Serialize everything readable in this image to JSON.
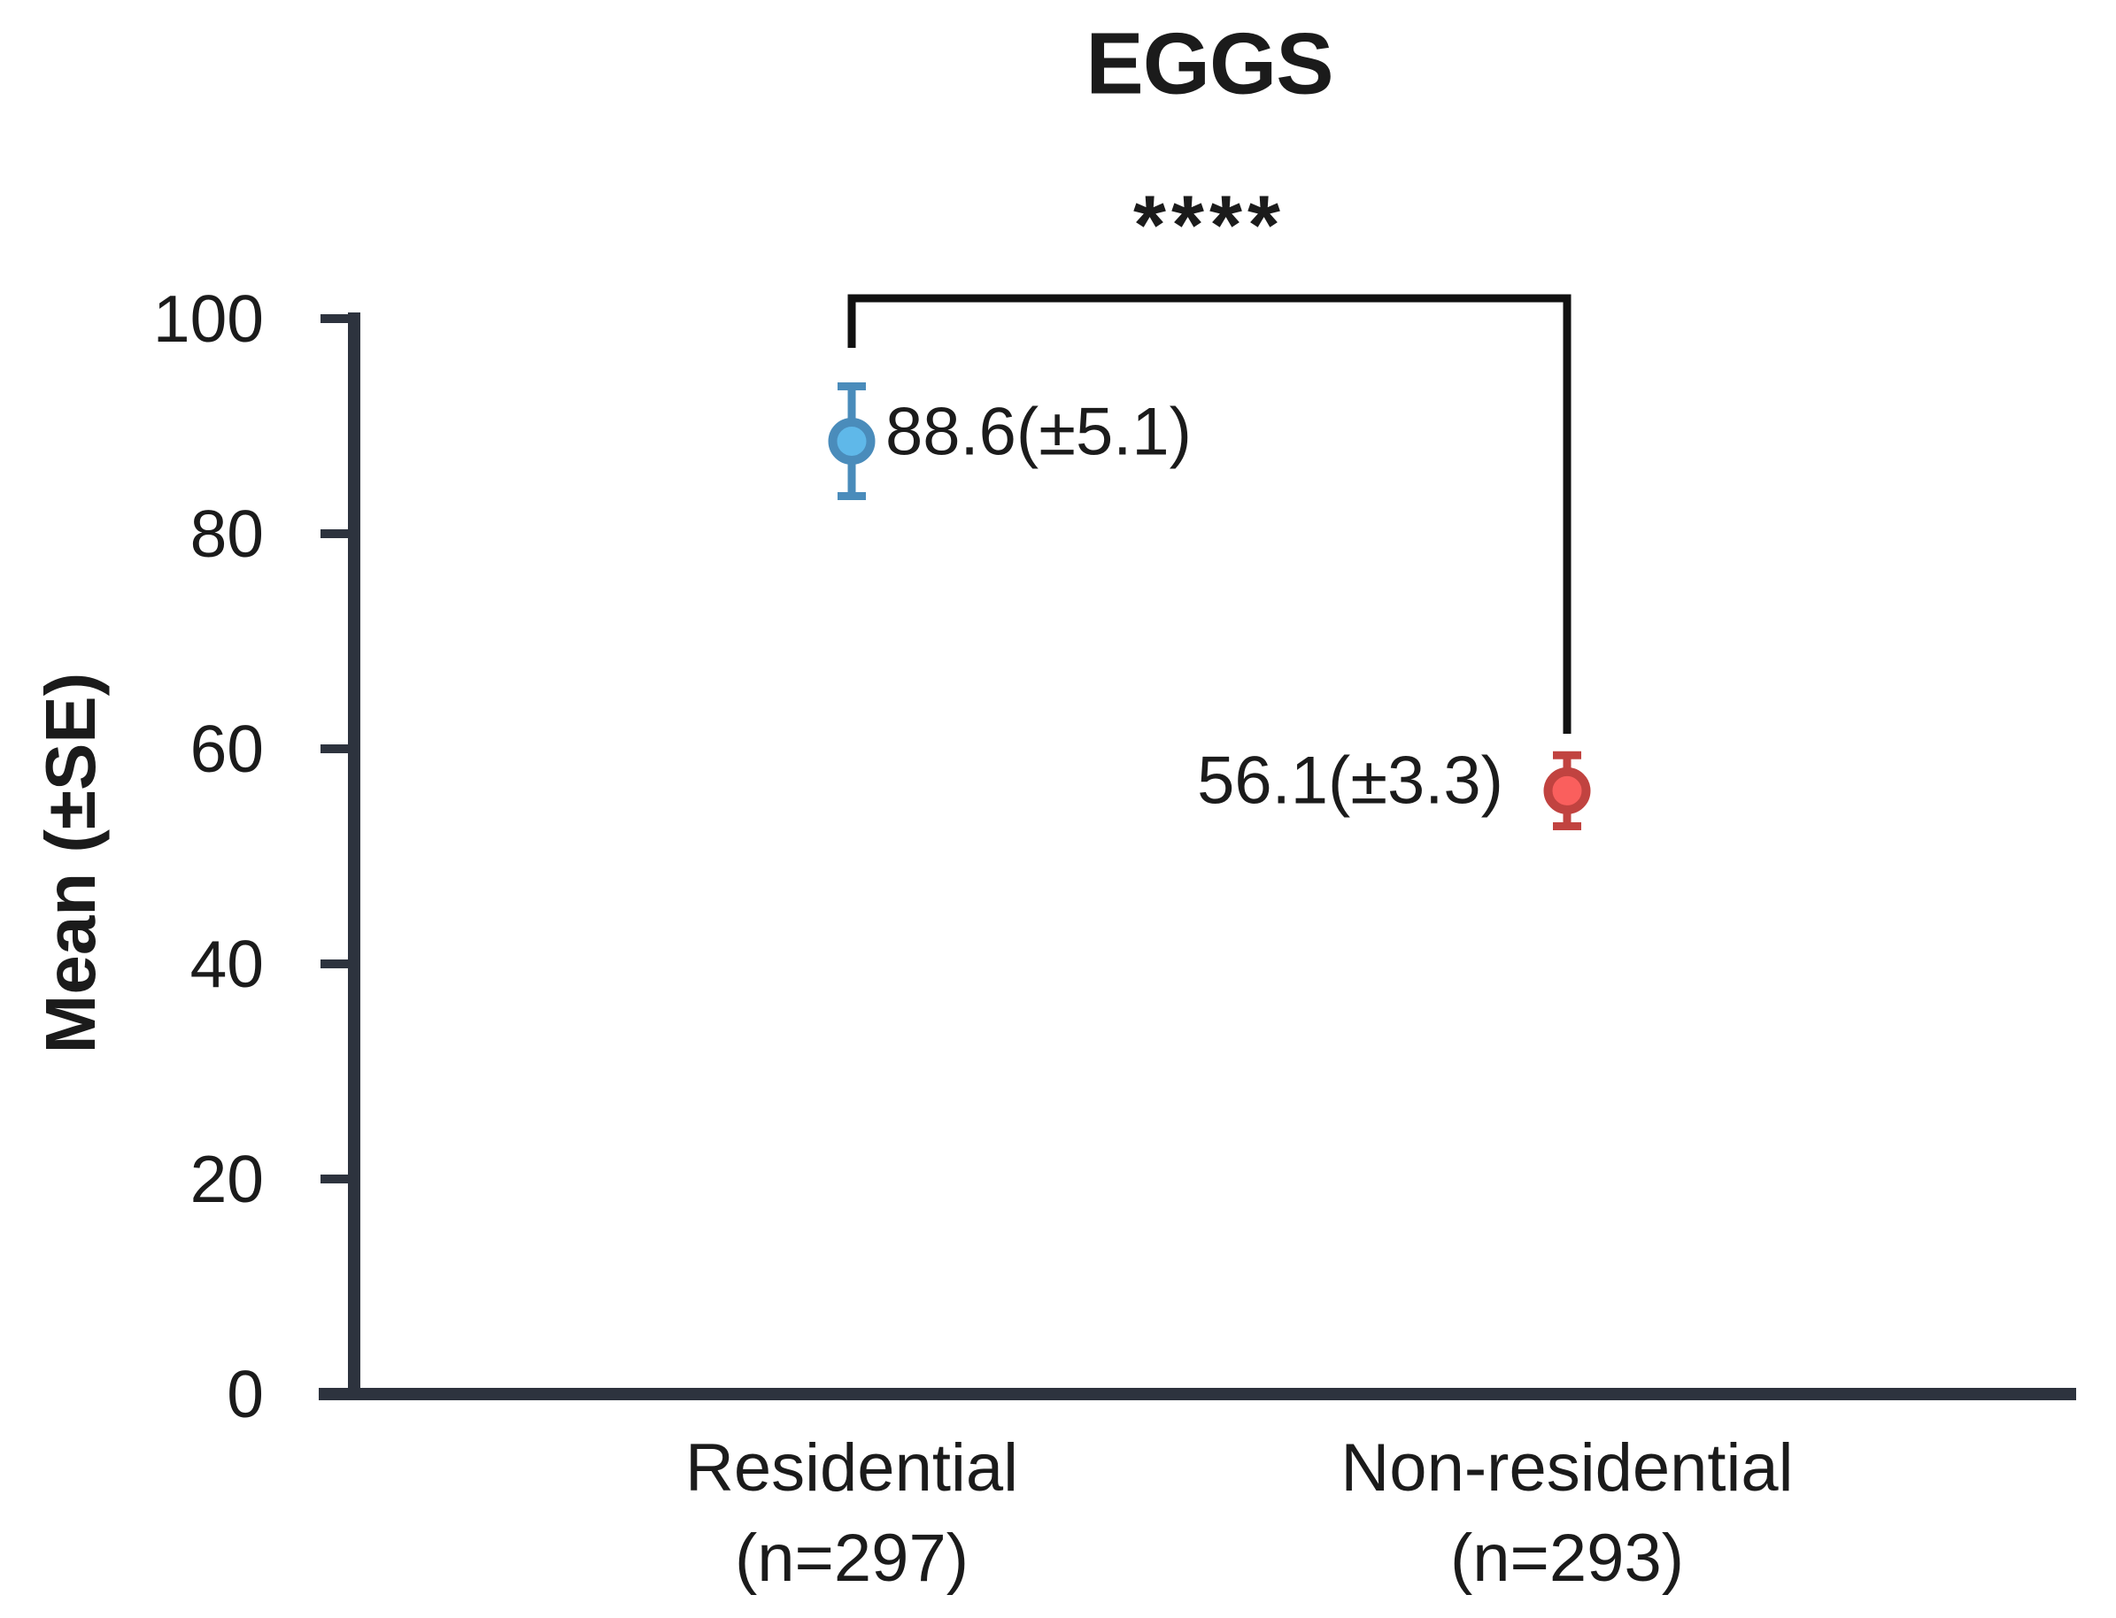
{
  "chart_data": {
    "type": "scatter",
    "title": "EGGS",
    "ylabel": "Mean (±SE)",
    "ylim": [
      0,
      100
    ],
    "yticks": [
      0,
      20,
      40,
      60,
      80,
      100
    ],
    "grid": false,
    "legend_position": "none",
    "background_color": "#ffffff",
    "axis_color": "#2d333e",
    "text_color": "#1b1b1b",
    "bracket_color": "#111111",
    "significance": {
      "label": "****",
      "between": [
        "Residential",
        "Non-residential"
      ]
    },
    "points": [
      {
        "category": "Residential",
        "n_label": "(n=297)",
        "mean": 88.6,
        "se": 5.1,
        "value_label": "88.6(±5.1)",
        "label_side": "right",
        "fill_color": "#5fb8e9",
        "stroke_color": "#4a8cbb"
      },
      {
        "category": "Non-residential",
        "n_label": "(n=293)",
        "mean": 56.1,
        "se": 3.3,
        "value_label": "56.1(±3.3)",
        "label_side": "left",
        "fill_color": "#fa5f5d",
        "stroke_color": "#c14340"
      }
    ]
  }
}
